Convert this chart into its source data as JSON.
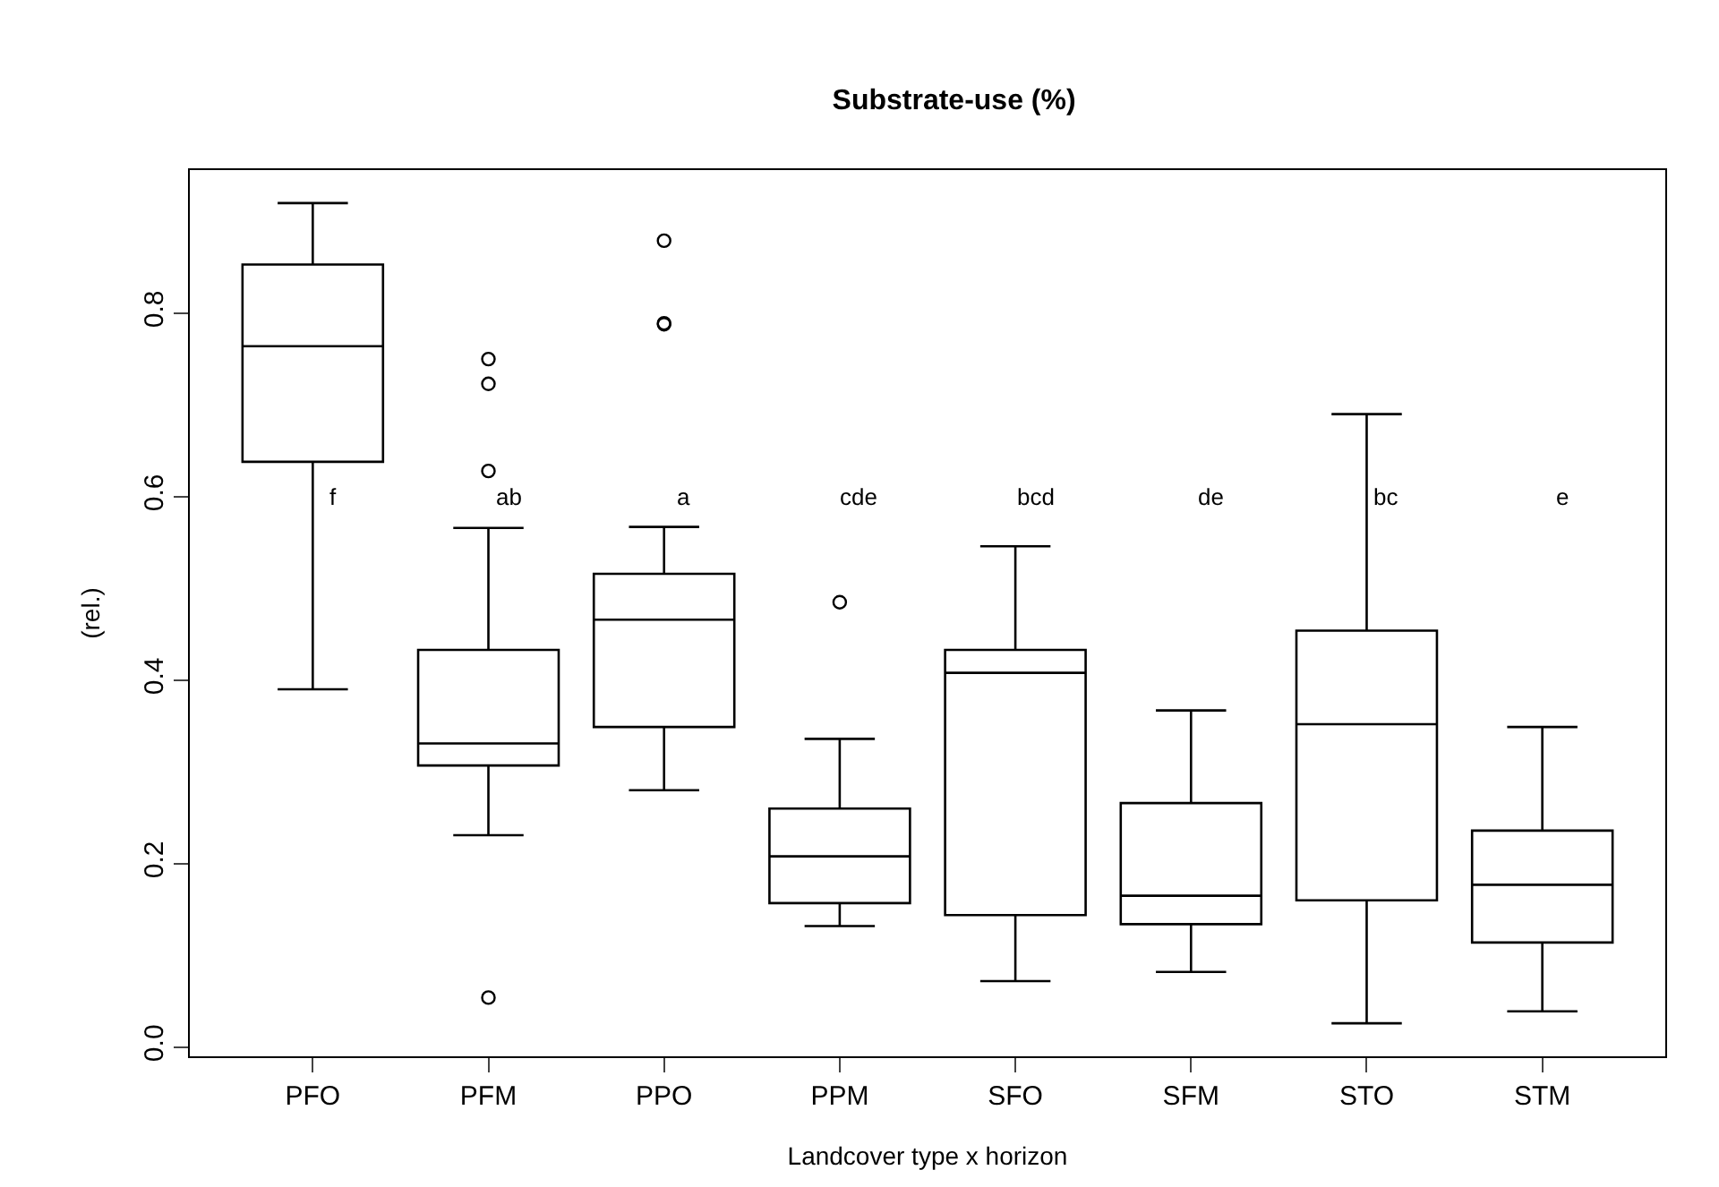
{
  "chart_data": {
    "type": "box",
    "title": "Substrate-use (%)",
    "xlabel": "Landcover type x horizon",
    "ylabel": "(rel.)",
    "categories": [
      "PFO",
      "PFM",
      "PPO",
      "PPM",
      "SFO",
      "SFM",
      "STO",
      "STM"
    ],
    "boxes": [
      {
        "low": 0.39,
        "q1": 0.638,
        "median": 0.764,
        "q3": 0.853,
        "high": 0.92
      },
      {
        "low": 0.231,
        "q1": 0.307,
        "median": 0.331,
        "q3": 0.433,
        "high": 0.566,
        "outliers": [
          0.75,
          0.723,
          0.628,
          0.054
        ]
      },
      {
        "low": 0.28,
        "q1": 0.349,
        "median": 0.466,
        "q3": 0.516,
        "high": 0.567,
        "outliers": [
          0.879,
          0.789,
          0.788
        ]
      },
      {
        "low": 0.132,
        "q1": 0.157,
        "median": 0.208,
        "q3": 0.26,
        "high": 0.336,
        "outliers": [
          0.485
        ]
      },
      {
        "low": 0.072,
        "q1": 0.144,
        "median": 0.408,
        "q3": 0.433,
        "high": 0.546
      },
      {
        "low": 0.082,
        "q1": 0.134,
        "median": 0.165,
        "q3": 0.266,
        "high": 0.367
      },
      {
        "low": 0.026,
        "q1": 0.16,
        "median": 0.352,
        "q3": 0.454,
        "high": 0.69
      },
      {
        "low": 0.039,
        "q1": 0.114,
        "median": 0.177,
        "q3": 0.236,
        "high": 0.349
      }
    ],
    "annotations": [
      "f",
      "ab",
      "a",
      "cde",
      "bcd",
      "de",
      "bc",
      "e"
    ],
    "ylim": [
      -0.01,
      0.956
    ],
    "yticks": [
      {
        "value": 0,
        "label": "0.0"
      },
      {
        "value": 0.2,
        "label": "0.2"
      },
      {
        "value": 0.4,
        "label": "0.4"
      },
      {
        "value": 0.6,
        "label": "0.6"
      },
      {
        "value": 0.8,
        "label": "0.8"
      }
    ],
    "grid": false
  }
}
